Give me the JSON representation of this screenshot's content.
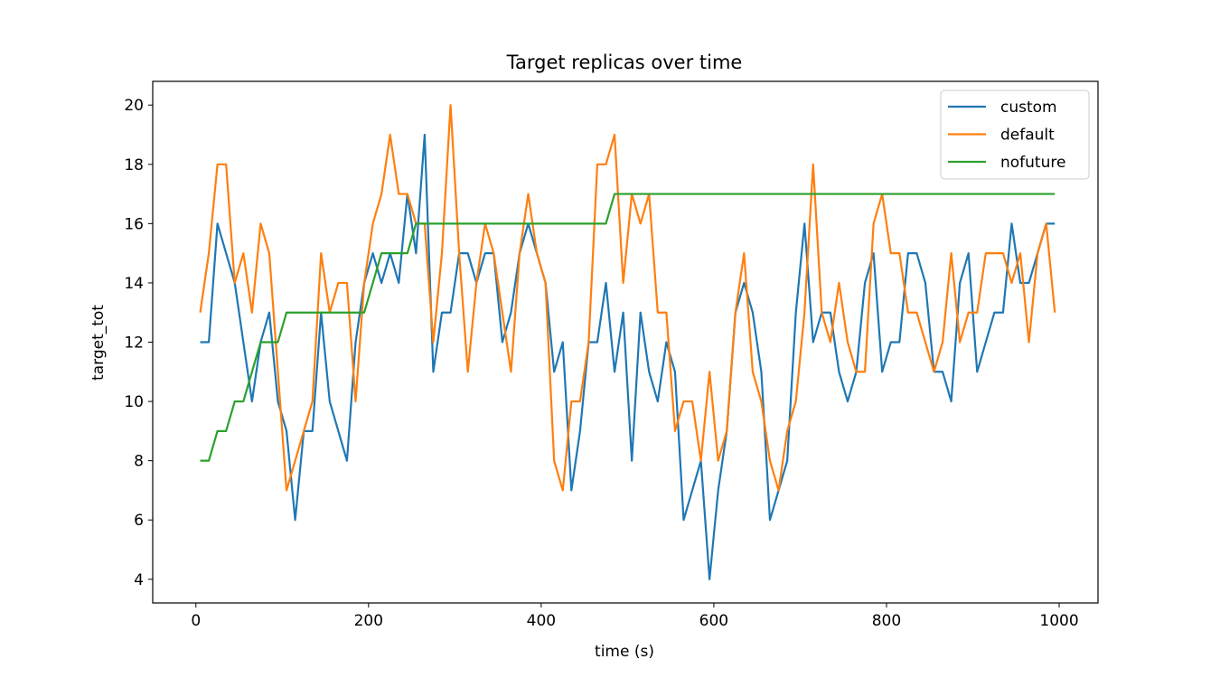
{
  "chart_data": {
    "type": "line",
    "title": "Target replicas over time",
    "xlabel": "time (s)",
    "ylabel": "target_tot",
    "xlim": [
      -50,
      1045
    ],
    "ylim": [
      3.2,
      20.8
    ],
    "xticks": [
      0,
      200,
      400,
      600,
      800,
      1000
    ],
    "yticks": [
      4,
      6,
      8,
      10,
      12,
      14,
      16,
      18,
      20
    ],
    "grid": false,
    "legend_position": "top-right",
    "x": [
      5,
      15,
      25,
      35,
      45,
      55,
      65,
      75,
      85,
      95,
      105,
      115,
      125,
      135,
      145,
      155,
      165,
      175,
      185,
      195,
      205,
      215,
      225,
      235,
      245,
      255,
      265,
      275,
      285,
      295,
      305,
      315,
      325,
      335,
      345,
      355,
      365,
      375,
      385,
      395,
      405,
      415,
      425,
      435,
      445,
      455,
      465,
      475,
      485,
      495,
      505,
      515,
      525,
      535,
      545,
      555,
      565,
      575,
      585,
      595,
      605,
      615,
      625,
      635,
      645,
      655,
      665,
      675,
      685,
      695,
      705,
      715,
      725,
      735,
      745,
      755,
      765,
      775,
      785,
      795,
      805,
      815,
      825,
      835,
      845,
      855,
      865,
      875,
      885,
      895,
      905,
      915,
      925,
      935,
      945,
      955,
      965,
      975,
      985,
      995
    ],
    "series": [
      {
        "name": "custom",
        "color": "#1f77b4",
        "values": [
          12,
          12,
          16,
          15,
          14,
          12,
          10,
          12,
          13,
          10,
          9,
          6,
          9,
          9,
          13,
          10,
          9,
          8,
          12,
          14,
          15,
          14,
          15,
          14,
          17,
          15,
          19,
          11,
          13,
          13,
          15,
          15,
          14,
          15,
          15,
          12,
          13,
          15,
          16,
          15,
          14,
          11,
          12,
          7,
          9,
          12,
          12,
          14,
          11,
          13,
          8,
          13,
          11,
          10,
          12,
          11,
          6,
          7,
          8,
          4,
          7,
          9,
          13,
          14,
          13,
          11,
          6,
          7,
          8,
          13,
          16,
          12,
          13,
          13,
          11,
          10,
          11,
          14,
          15,
          11,
          12,
          12,
          15,
          15,
          14,
          11,
          11,
          10,
          14,
          15,
          11,
          12,
          13,
          13,
          16,
          14,
          14,
          15,
          16,
          16
        ]
      },
      {
        "name": "default",
        "color": "#ff7f0e",
        "values": [
          13,
          15,
          18,
          18,
          14,
          15,
          13,
          16,
          15,
          11,
          7,
          8,
          9,
          10,
          15,
          13,
          14,
          14,
          10,
          14,
          16,
          17,
          19,
          17,
          17,
          16,
          16,
          12,
          15,
          20,
          15,
          11,
          14,
          16,
          15,
          13,
          11,
          15,
          17,
          15,
          14,
          8,
          7,
          10,
          10,
          12,
          18,
          18,
          19,
          14,
          17,
          16,
          17,
          13,
          13,
          9,
          10,
          10,
          8,
          11,
          8,
          9,
          13,
          15,
          11,
          10,
          8,
          7,
          9,
          10,
          13,
          18,
          13,
          12,
          14,
          12,
          11,
          11,
          16,
          17,
          15,
          15,
          13,
          13,
          12,
          11,
          12,
          15,
          12,
          13,
          13,
          15,
          15,
          15,
          14,
          15,
          12,
          15,
          16,
          13
        ]
      },
      {
        "name": "nofuture",
        "color": "#2ca02c",
        "values": [
          8,
          8,
          9,
          9,
          10,
          10,
          11,
          12,
          12,
          12,
          13,
          13,
          13,
          13,
          13,
          13,
          13,
          13,
          13,
          13,
          14,
          15,
          15,
          15,
          15,
          16,
          16,
          16,
          16,
          16,
          16,
          16,
          16,
          16,
          16,
          16,
          16,
          16,
          16,
          16,
          16,
          16,
          16,
          16,
          16,
          16,
          16,
          16,
          17,
          17,
          17,
          17,
          17,
          17,
          17,
          17,
          17,
          17,
          17,
          17,
          17,
          17,
          17,
          17,
          17,
          17,
          17,
          17,
          17,
          17,
          17,
          17,
          17,
          17,
          17,
          17,
          17,
          17,
          17,
          17,
          17,
          17,
          17,
          17,
          17,
          17,
          17,
          17,
          17,
          17,
          17,
          17,
          17,
          17,
          17,
          17,
          17,
          17,
          17,
          17
        ]
      }
    ]
  }
}
